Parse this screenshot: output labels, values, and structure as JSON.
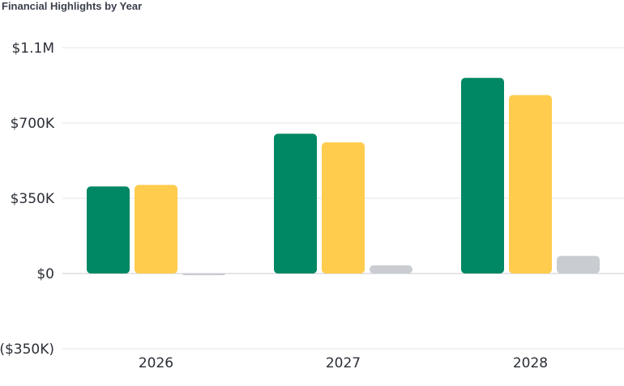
{
  "chart_data": {
    "type": "bar",
    "title": "Financial Highlights by Year",
    "categories": [
      "2026",
      "2027",
      "2028"
    ],
    "series": [
      {
        "values": [
          405000,
          650000,
          910000
        ],
        "color": "#008763"
      },
      {
        "values": [
          412000,
          610000,
          830000
        ],
        "color": "#ffcc4d"
      },
      {
        "values": [
          -8000,
          38000,
          82000
        ],
        "color": "#c9ccd1"
      }
    ],
    "ylim": [
      -350000,
      1050000
    ],
    "yticks": [
      {
        "value": 1050000,
        "label": "$1.1M"
      },
      {
        "value": 700000,
        "label": "$700K"
      },
      {
        "value": 350000,
        "label": "$350K"
      },
      {
        "value": 0,
        "label": "$0"
      },
      {
        "value": -350000,
        "label": "($350K)"
      }
    ],
    "grid": true,
    "legend": "none"
  }
}
